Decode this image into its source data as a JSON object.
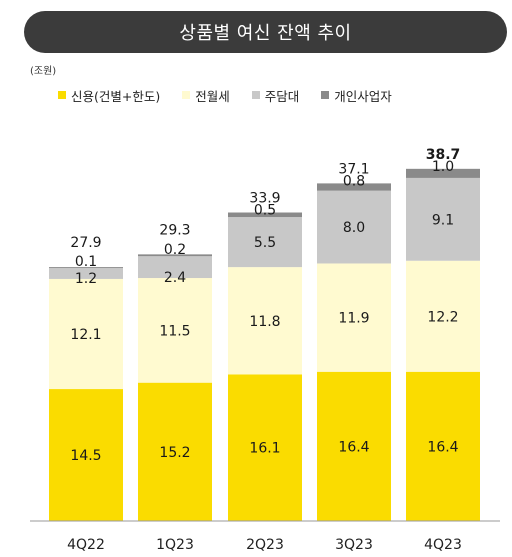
{
  "title": "상품별 여신 잔액 추이",
  "unit": "(조원)",
  "chart_data": {
    "type": "bar",
    "stacked": true,
    "categories": [
      "4Q22",
      "1Q23",
      "2Q23",
      "3Q23",
      "4Q23"
    ],
    "series": [
      {
        "name": "신용(건별+한도)",
        "color": "#fadc00",
        "values": [
          14.5,
          15.2,
          16.1,
          16.4,
          16.4
        ]
      },
      {
        "name": "전월세",
        "color": "#fffad0",
        "values": [
          12.1,
          11.5,
          11.8,
          11.9,
          12.2
        ]
      },
      {
        "name": "주담대",
        "color": "#c8c8c8",
        "values": [
          1.2,
          2.4,
          5.5,
          8.0,
          9.1
        ]
      },
      {
        "name": "개인사업자",
        "color": "#8a8a8a",
        "values": [
          0.1,
          0.2,
          0.5,
          0.8,
          1.0
        ]
      }
    ],
    "totals": [
      "27.9",
      "29.3",
      "33.9",
      "37.1",
      "38.7"
    ],
    "highlight_total_index": 4,
    "ylim": [
      0,
      40
    ],
    "legend_position": "top-left",
    "grid": false
  }
}
